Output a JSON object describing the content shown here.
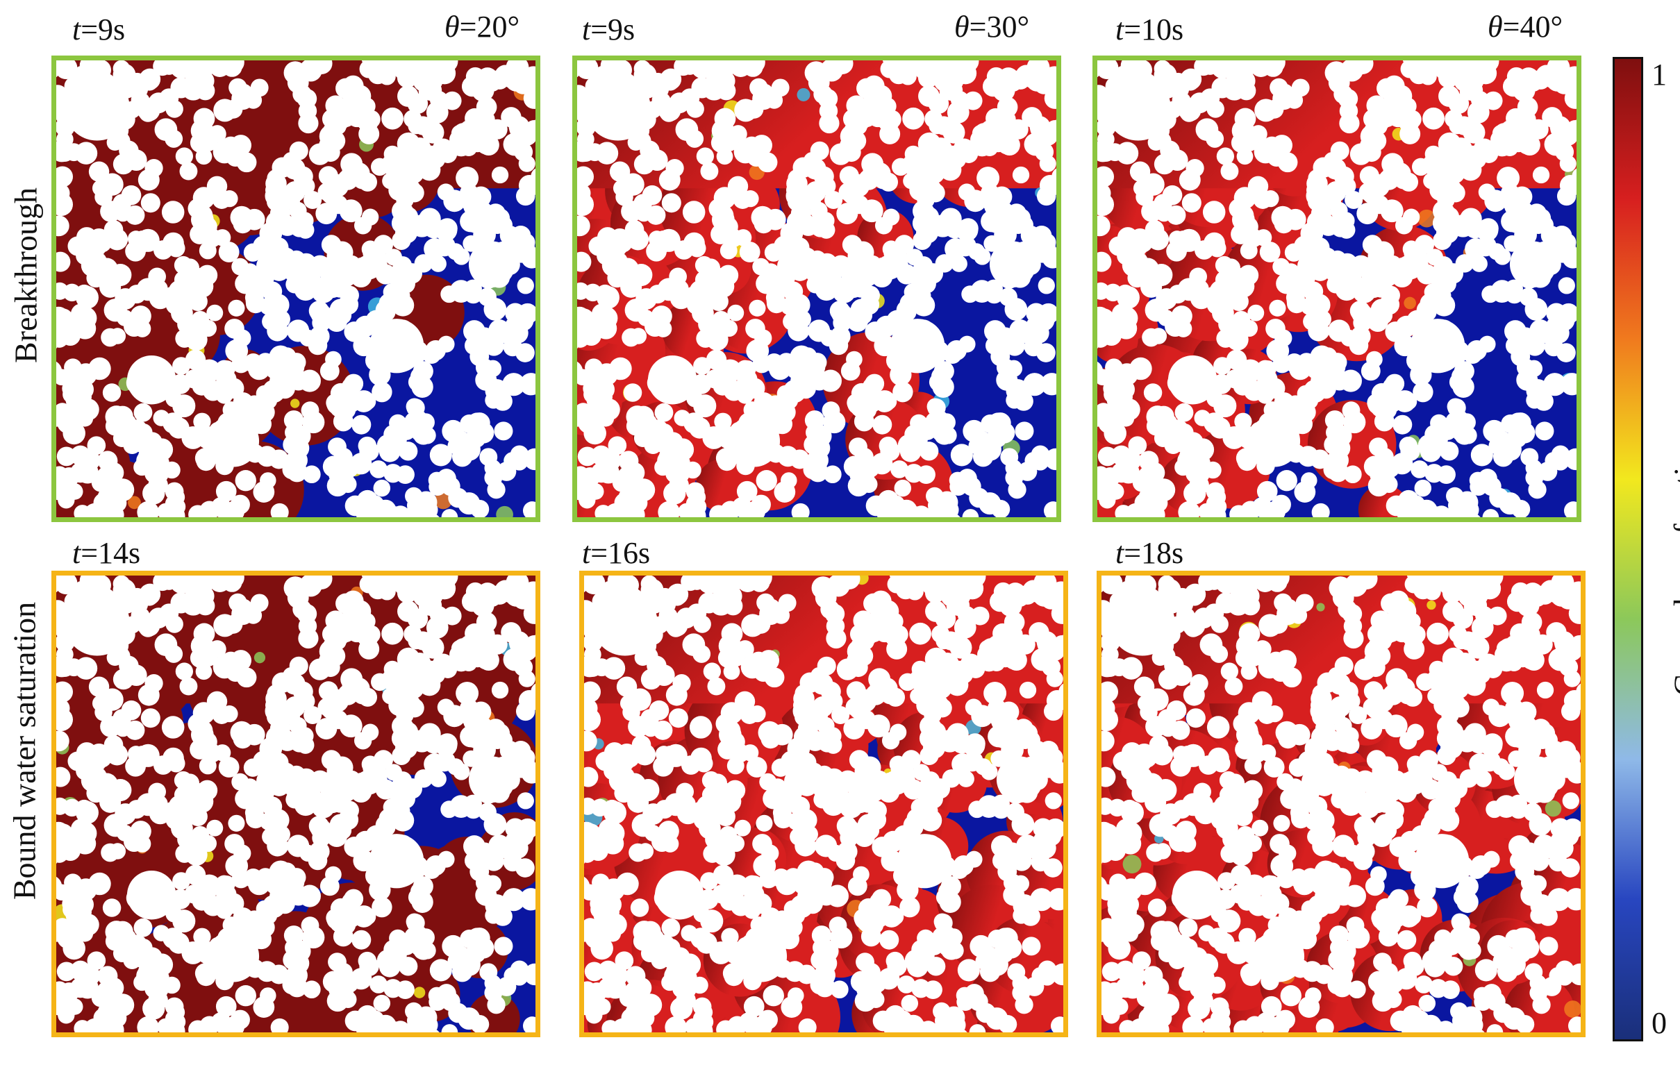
{
  "panels": [
    {
      "time_var": "t",
      "time_value": "=9s",
      "angle_var": "θ",
      "angle_value": "=20°",
      "row": 0,
      "col": 0,
      "invaded": 0.55
    },
    {
      "time_var": "t",
      "time_value": "=9s",
      "angle_var": "θ",
      "angle_value": "=30°",
      "row": 0,
      "col": 1,
      "invaded": 0.52
    },
    {
      "time_var": "t",
      "time_value": "=10s",
      "angle_var": "θ",
      "angle_value": "=40°",
      "row": 0,
      "col": 2,
      "invaded": 0.5
    },
    {
      "time_var": "t",
      "time_value": "=14s",
      "angle_var": "",
      "angle_value": "",
      "row": 1,
      "col": 0,
      "invaded": 0.68
    },
    {
      "time_var": "t",
      "time_value": "=16s",
      "angle_var": "",
      "angle_value": "",
      "row": 1,
      "col": 1,
      "invaded": 0.74
    },
    {
      "time_var": "t",
      "time_value": "=18s",
      "angle_var": "",
      "angle_value": "",
      "row": 1,
      "col": 2,
      "invaded": 0.8
    }
  ],
  "row_labels": [
    "Breakthrough",
    "Bound water saturation"
  ],
  "colorbar": {
    "title": "Gas volume fraction",
    "max_label": "1",
    "min_label": "0",
    "stops": [
      "#7f0f0f",
      "#d71f1f",
      "#f07a1e",
      "#f2e81e",
      "#8cc85a",
      "#8fb9e8",
      "#2846c0",
      "#1a2f7a"
    ]
  },
  "colors": {
    "breakthrough_frame": "#8cc63f",
    "saturation_frame": "#f5b417",
    "gas_dark": "#7f0f0f",
    "gas_red": "#d71f1f",
    "water": "#0a16a0"
  }
}
